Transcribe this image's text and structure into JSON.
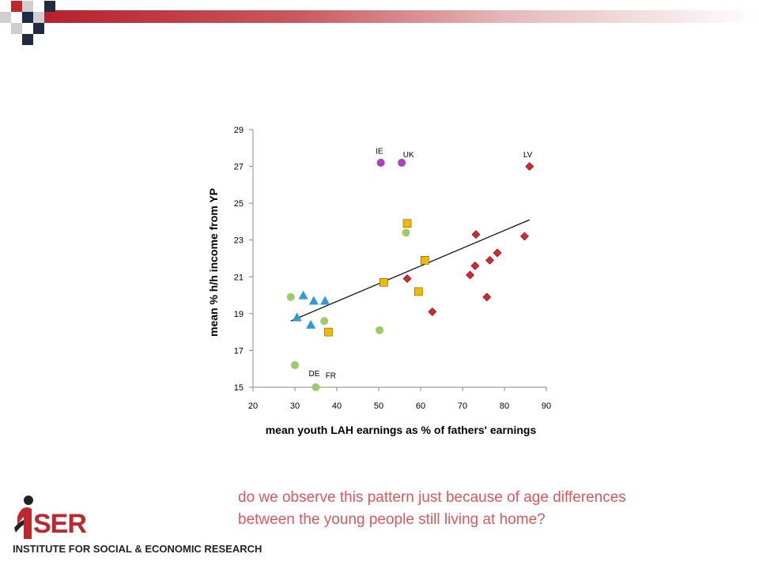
{
  "theme": {
    "accent": "#c0272d",
    "question_color": "#e0565b"
  },
  "decor": {
    "top_bar": "red-gradient-rule",
    "checker": "checkerboard-squares"
  },
  "chart_data": {
    "type": "scatter",
    "xlabel": "mean youth LAH earnings as % of fathers' earnings",
    "ylabel": "mean % h/h income from YP",
    "xlim": [
      20,
      90
    ],
    "ylim": [
      15,
      29
    ],
    "xticks": [
      20,
      30,
      40,
      50,
      60,
      70,
      80,
      90
    ],
    "yticks": [
      15,
      17,
      19,
      21,
      23,
      25,
      27,
      29
    ],
    "grid": false,
    "legend": "none",
    "series": [
      {
        "marker": "circle",
        "color": "#9ccc65",
        "points": [
          [
            29,
            19.9
          ],
          [
            30,
            16.2
          ],
          [
            35,
            15
          ],
          [
            37,
            18.6
          ],
          [
            50.2,
            18.1
          ],
          [
            56.5,
            23.4
          ]
        ]
      },
      {
        "marker": "circle",
        "color": "#b03cc8",
        "points": [
          [
            50.5,
            27.2
          ],
          [
            55.5,
            27.2
          ]
        ]
      },
      {
        "marker": "triangle",
        "color": "#2e9ad9",
        "points": [
          [
            30.5,
            18.8
          ],
          [
            32,
            20
          ],
          [
            33.8,
            18.4
          ],
          [
            34.5,
            19.7
          ],
          [
            37.2,
            19.7
          ]
        ]
      },
      {
        "marker": "square",
        "color": "#f5b800",
        "points": [
          [
            38,
            18
          ],
          [
            51.2,
            20.7
          ],
          [
            56.8,
            23.9
          ],
          [
            59.5,
            20.2
          ],
          [
            61,
            21.9
          ]
        ]
      },
      {
        "marker": "diamond",
        "color": "#d7262d",
        "points": [
          [
            56.8,
            20.9
          ],
          [
            62.8,
            19.1
          ],
          [
            71.8,
            21.1
          ],
          [
            73,
            21.6
          ],
          [
            73.2,
            23.3
          ],
          [
            75.8,
            19.9
          ],
          [
            76.5,
            21.9
          ],
          [
            78.3,
            22.3
          ],
          [
            84.8,
            23.2
          ],
          [
            86,
            27
          ]
        ]
      }
    ],
    "trendline": [
      [
        29,
        18.6
      ],
      [
        86,
        24.1
      ]
    ],
    "annotations": [
      {
        "text": "IE",
        "x": 49.3,
        "y": 27.7
      },
      {
        "text": "UK",
        "x": 55.8,
        "y": 27.5
      },
      {
        "text": "LV",
        "x": 84.5,
        "y": 27.5
      },
      {
        "text": "DE",
        "x": 33.3,
        "y": 15.6
      },
      {
        "text": "FR",
        "x": 37.3,
        "y": 15.5
      }
    ]
  },
  "question": {
    "line1": "do we observe this pattern just because of age differences",
    "line2": "between the young people still living at home?"
  },
  "logo": {
    "word": "SER",
    "tagline": "INSTITUTE FOR SOCIAL & ECONOMIC RESEARCH"
  }
}
